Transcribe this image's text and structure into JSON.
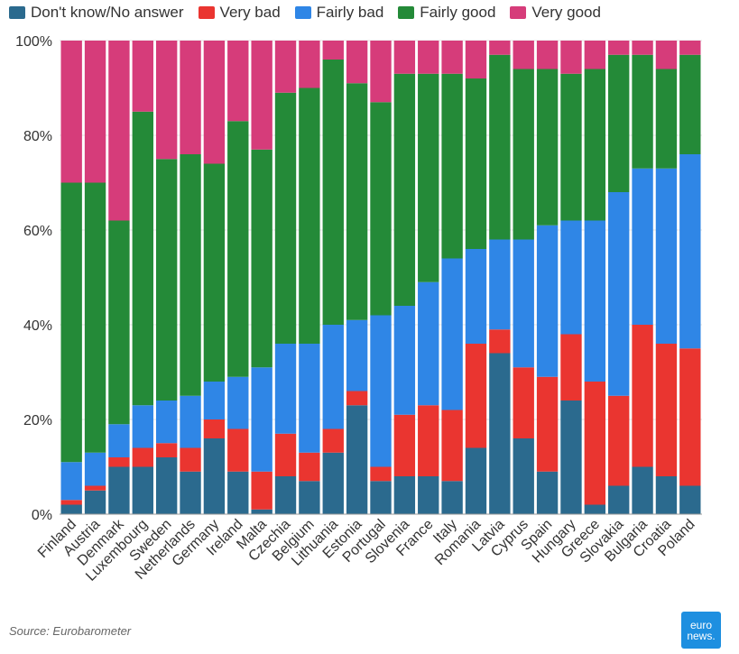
{
  "source": "Source: Eurobarometer",
  "logo": {
    "line1": "euro",
    "line2": "news."
  },
  "chart_data": {
    "type": "bar",
    "stacked": true,
    "normalized": true,
    "title": "",
    "xlabel": "",
    "ylabel": "",
    "ylim": [
      0,
      100
    ],
    "y_ticks": [
      "0%",
      "20%",
      "40%",
      "60%",
      "80%",
      "100%"
    ],
    "grid": true,
    "legend_position": "top-left",
    "categories": [
      "Finland",
      "Austria",
      "Denmark",
      "Luxembourg",
      "Sweden",
      "Netherlands",
      "Germany",
      "Ireland",
      "Malta",
      "Czechia",
      "Belgium",
      "Lithuania",
      "Estonia",
      "Portugal",
      "Slovenia",
      "France",
      "Italy",
      "Romania",
      "Latvia",
      "Cyprus",
      "Spain",
      "Hungary",
      "Greece",
      "Slovakia",
      "Bulgaria",
      "Croatia",
      "Poland"
    ],
    "series": [
      {
        "name": "Don't know/No answer",
        "color": "#2b6a8e",
        "values": [
          2,
          5,
          10,
          10,
          12,
          9,
          16,
          9,
          1,
          8,
          7,
          13,
          23,
          7,
          8,
          8,
          7,
          14,
          34,
          16,
          9,
          24,
          2,
          6,
          10,
          8,
          6
        ]
      },
      {
        "name": "Very bad",
        "color": "#ea3530",
        "values": [
          1,
          1,
          2,
          4,
          3,
          5,
          4,
          9,
          8,
          9,
          6,
          5,
          3,
          3,
          13,
          15,
          15,
          22,
          5,
          15,
          20,
          14,
          26,
          19,
          30,
          28,
          29
        ]
      },
      {
        "name": "Fairly bad",
        "color": "#2f86e6",
        "values": [
          8,
          7,
          7,
          9,
          9,
          11,
          8,
          11,
          22,
          19,
          23,
          22,
          15,
          32,
          23,
          26,
          32,
          20,
          19,
          27,
          32,
          24,
          34,
          43,
          33,
          37,
          41
        ]
      },
      {
        "name": "Fairly good",
        "color": "#248a38",
        "values": [
          59,
          57,
          43,
          62,
          51,
          51,
          46,
          54,
          46,
          53,
          54,
          56,
          50,
          45,
          49,
          44,
          39,
          36,
          39,
          36,
          33,
          31,
          32,
          29,
          24,
          21,
          21
        ]
      },
      {
        "name": "Very good",
        "color": "#d63c7a",
        "values": [
          30,
          30,
          38,
          15,
          25,
          24,
          26,
          17,
          23,
          11,
          10,
          4,
          9,
          13,
          7,
          7,
          7,
          8,
          3,
          6,
          6,
          7,
          6,
          3,
          3,
          6,
          3
        ]
      }
    ]
  }
}
